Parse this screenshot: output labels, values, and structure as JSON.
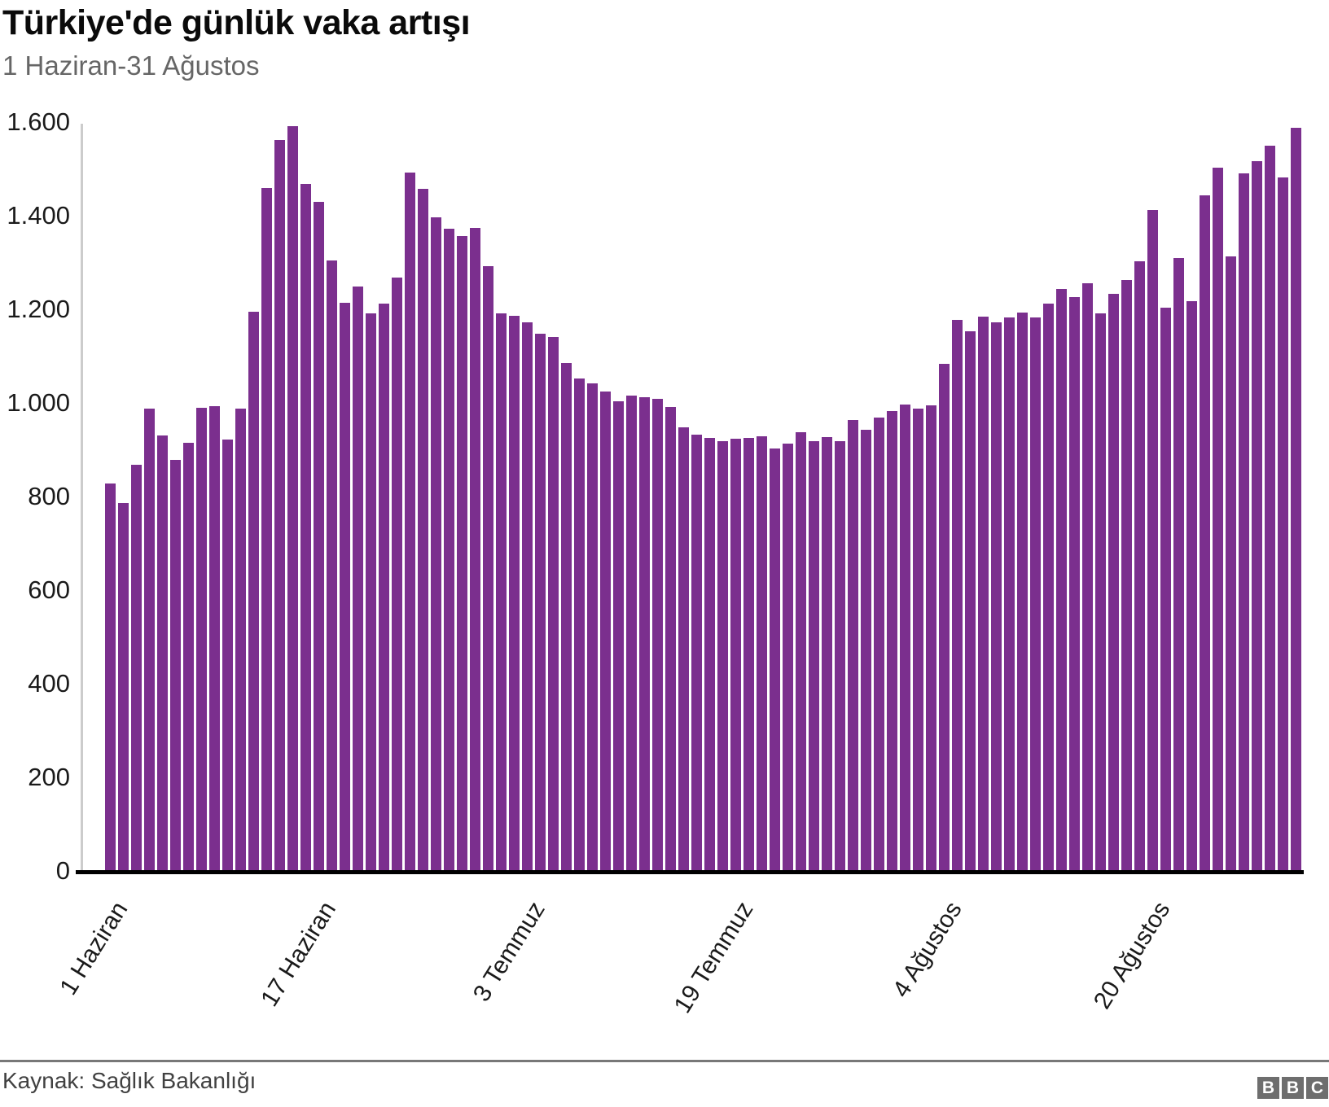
{
  "header": {
    "title": "Türkiye'de günlük vaka artışı",
    "subtitle": "1 Haziran-31 Ağustos"
  },
  "chart_data": {
    "type": "bar",
    "title": "Türkiye'de günlük vaka artışı",
    "subtitle": "1 Haziran-31 Ağustos",
    "values": [
      827,
      786,
      867,
      988,
      930,
      878,
      914,
      989,
      993,
      922,
      987,
      1195,
      1459,
      1562,
      1592,
      1467,
      1429,
      1304,
      1214,
      1248,
      1192,
      1212,
      1268,
      1492,
      1458,
      1396,
      1372,
      1356,
      1374,
      1293,
      1192,
      1186,
      1172,
      1148,
      1141,
      1086,
      1053,
      1041,
      1024,
      1003,
      1016,
      1012,
      1008,
      992,
      947,
      933,
      926,
      918,
      924,
      926,
      928,
      902,
      913,
      937,
      919,
      927,
      919,
      963,
      942,
      969,
      982,
      996,
      987,
      995,
      1083,
      1178,
      1153,
      1185,
      1172,
      1182,
      1193,
      1183,
      1212,
      1243,
      1226,
      1256,
      1192,
      1233,
      1263,
      1303,
      1412,
      1203,
      1309,
      1217,
      1443,
      1502,
      1313,
      1491,
      1517,
      1549,
      1482,
      1587
    ],
    "x_tick_labels": [
      {
        "index": 0,
        "label": "1 Haziran"
      },
      {
        "index": 16,
        "label": "17 Haziran"
      },
      {
        "index": 32,
        "label": "3 Temmuz"
      },
      {
        "index": 48,
        "label": "19 Temmuz"
      },
      {
        "index": 64,
        "label": "4 Ağustos"
      },
      {
        "index": 80,
        "label": "20 Ağustos"
      }
    ],
    "y_ticks": [
      {
        "value": 0,
        "label": "0"
      },
      {
        "value": 200,
        "label": "200"
      },
      {
        "value": 400,
        "label": "400"
      },
      {
        "value": 600,
        "label": "600"
      },
      {
        "value": 800,
        "label": "800"
      },
      {
        "value": 1000,
        "label": "1.000"
      },
      {
        "value": 1200,
        "label": "1.200"
      },
      {
        "value": 1400,
        "label": "1.400"
      },
      {
        "value": 1600,
        "label": "1.600"
      }
    ],
    "ylim": [
      0,
      1600
    ],
    "grid": false,
    "legend": "none",
    "bar_color": "#7b2f8e"
  },
  "footer": {
    "source": "Kaynak: Sağlık Bakanlığı",
    "logo_letters": [
      "B",
      "B",
      "C"
    ]
  }
}
